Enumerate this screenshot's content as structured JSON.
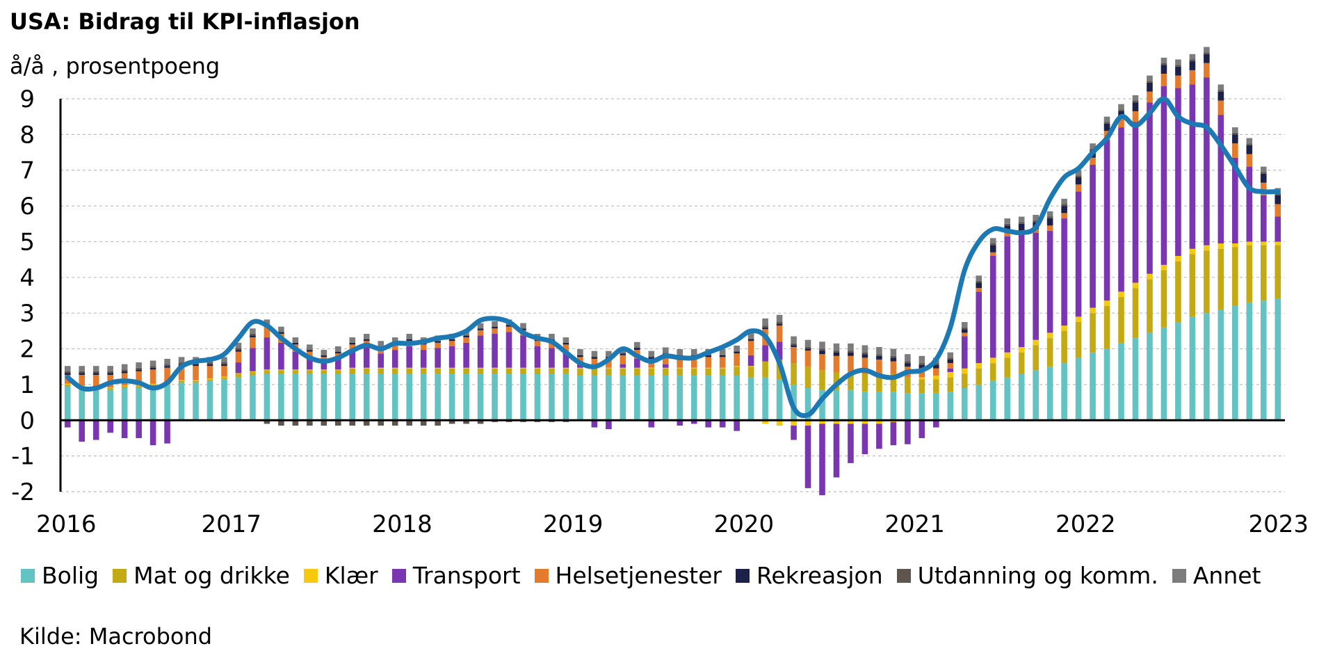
{
  "chart_data": {
    "type": "bar",
    "title": "USA: Bidrag til KPI-inflasjon",
    "ylabel": "å/å , prosentpoeng",
    "ylim": [
      -2,
      9
    ],
    "yticks": [
      "-2",
      "-1",
      "0",
      "1",
      "2",
      "3",
      "4",
      "5",
      "6",
      "7",
      "8",
      "9"
    ],
    "xticks": [
      "2016",
      "2017",
      "2018",
      "2019",
      "2020",
      "2021",
      "2022",
      "2023"
    ],
    "x_start": "2016-01",
    "x_end": "2023-01",
    "source": "Kilde: Macrobond",
    "grid": true,
    "legend_position": "bottom",
    "series": [
      {
        "name": "Bolig",
        "color": "#63C3C2",
        "values": [
          0.95,
          0.9,
          0.85,
          0.85,
          0.9,
          0.9,
          0.95,
          1.0,
          1.05,
          1.05,
          1.1,
          1.15,
          1.2,
          1.25,
          1.3,
          1.3,
          1.3,
          1.3,
          1.3,
          1.3,
          1.3,
          1.3,
          1.3,
          1.3,
          1.3,
          1.3,
          1.3,
          1.3,
          1.3,
          1.3,
          1.3,
          1.3,
          1.3,
          1.3,
          1.3,
          1.3,
          1.25,
          1.25,
          1.25,
          1.25,
          1.25,
          1.25,
          1.25,
          1.25,
          1.25,
          1.25,
          1.25,
          1.25,
          1.2,
          1.2,
          1.15,
          1.0,
          0.9,
          0.85,
          0.85,
          0.85,
          0.8,
          0.8,
          0.8,
          0.75,
          0.75,
          0.75,
          0.8,
          0.9,
          1.0,
          1.1,
          1.2,
          1.3,
          1.4,
          1.5,
          1.6,
          1.75,
          1.9,
          2.0,
          2.15,
          2.3,
          2.45,
          2.6,
          2.75,
          2.9,
          3.0,
          3.1,
          3.2,
          3.3,
          3.35,
          3.4
        ]
      },
      {
        "name": "Mat og drikke",
        "color": "#C3A914",
        "values": [
          0.05,
          0.05,
          0.05,
          0.05,
          0.05,
          0.05,
          0.05,
          0.05,
          0.05,
          0.05,
          0.05,
          0.05,
          0.1,
          0.1,
          0.1,
          0.1,
          0.1,
          0.1,
          0.1,
          0.1,
          0.15,
          0.15,
          0.15,
          0.15,
          0.15,
          0.15,
          0.15,
          0.15,
          0.15,
          0.15,
          0.15,
          0.15,
          0.15,
          0.15,
          0.15,
          0.15,
          0.2,
          0.2,
          0.2,
          0.2,
          0.2,
          0.2,
          0.2,
          0.2,
          0.2,
          0.2,
          0.2,
          0.25,
          0.3,
          0.45,
          0.55,
          0.6,
          0.6,
          0.55,
          0.5,
          0.5,
          0.5,
          0.5,
          0.5,
          0.45,
          0.4,
          0.4,
          0.4,
          0.4,
          0.45,
          0.5,
          0.55,
          0.6,
          0.7,
          0.8,
          0.9,
          1.0,
          1.1,
          1.2,
          1.3,
          1.4,
          1.5,
          1.6,
          1.7,
          1.75,
          1.75,
          1.7,
          1.65,
          1.6,
          1.55,
          1.5
        ]
      },
      {
        "name": "Klær",
        "color": "#F6C90E",
        "values": [
          0.02,
          0.02,
          0.02,
          0.02,
          0.02,
          0.02,
          0.02,
          0.02,
          0.02,
          0.02,
          0.02,
          0.02,
          0.02,
          0.02,
          0.02,
          0.02,
          0.02,
          0.02,
          0.02,
          0.02,
          0.02,
          0.02,
          0.02,
          0.02,
          0.02,
          0.02,
          0.02,
          0.02,
          0.02,
          0.02,
          0.02,
          0.02,
          0.02,
          0.02,
          0.02,
          0.02,
          0.02,
          0.02,
          0.02,
          0.02,
          0.02,
          0.02,
          0.02,
          0.02,
          0.02,
          0.02,
          0.02,
          0.02,
          0.02,
          -0.1,
          -0.15,
          -0.15,
          -0.15,
          -0.1,
          -0.1,
          -0.1,
          -0.1,
          -0.1,
          -0.05,
          -0.02,
          0.05,
          0.1,
          0.15,
          0.15,
          0.15,
          0.15,
          0.15,
          0.15,
          0.15,
          0.15,
          0.15,
          0.15,
          0.15,
          0.15,
          0.15,
          0.15,
          0.15,
          0.15,
          0.15,
          0.15,
          0.15,
          0.15,
          0.1,
          0.1,
          0.1,
          0.1
        ]
      },
      {
        "name": "Transport",
        "color": "#7A35B0",
        "values": [
          -0.2,
          -0.6,
          -0.55,
          -0.35,
          -0.5,
          -0.5,
          -0.7,
          -0.65,
          0.0,
          0.0,
          0.0,
          0.0,
          0.3,
          0.65,
          0.9,
          0.75,
          0.5,
          0.3,
          0.2,
          0.3,
          0.5,
          0.6,
          0.4,
          0.5,
          0.6,
          0.5,
          0.55,
          0.6,
          0.7,
          0.9,
          0.95,
          1.0,
          0.9,
          0.6,
          0.55,
          0.45,
          0.1,
          -0.2,
          -0.25,
          0.1,
          0.25,
          -0.2,
          0.1,
          -0.15,
          -0.1,
          -0.2,
          -0.2,
          -0.3,
          0.3,
          0.45,
          0.5,
          -0.4,
          -1.75,
          -2.0,
          -1.5,
          -1.1,
          -0.85,
          -0.7,
          -0.65,
          -0.65,
          -0.5,
          -0.2,
          0.1,
          0.9,
          2.0,
          2.85,
          3.25,
          3.15,
          3.0,
          2.85,
          3.0,
          3.5,
          4.0,
          4.5,
          4.6,
          4.5,
          4.8,
          5.0,
          4.7,
          4.6,
          4.7,
          3.6,
          2.4,
          2.1,
          1.3,
          0.7
        ]
      },
      {
        "name": "Helsetjenester",
        "color": "#E47B2C",
        "values": [
          0.25,
          0.3,
          0.35,
          0.35,
          0.35,
          0.4,
          0.4,
          0.4,
          0.4,
          0.4,
          0.35,
          0.3,
          0.3,
          0.3,
          0.3,
          0.25,
          0.2,
          0.2,
          0.15,
          0.15,
          0.15,
          0.15,
          0.15,
          0.15,
          0.15,
          0.15,
          0.15,
          0.15,
          0.15,
          0.15,
          0.15,
          0.15,
          0.15,
          0.15,
          0.2,
          0.2,
          0.2,
          0.25,
          0.25,
          0.25,
          0.25,
          0.25,
          0.25,
          0.3,
          0.3,
          0.3,
          0.3,
          0.35,
          0.4,
          0.45,
          0.45,
          0.45,
          0.45,
          0.45,
          0.45,
          0.45,
          0.45,
          0.4,
          0.35,
          0.3,
          0.25,
          0.2,
          0.15,
          0.1,
          0.1,
          0.1,
          0.1,
          0.1,
          0.1,
          0.15,
          0.15,
          0.2,
          0.2,
          0.25,
          0.25,
          0.3,
          0.3,
          0.35,
          0.35,
          0.4,
          0.4,
          0.4,
          0.4,
          0.35,
          0.35,
          0.35
        ]
      },
      {
        "name": "Rekreasjon",
        "color": "#1B2148",
        "values": [
          0.05,
          0.05,
          0.05,
          0.05,
          0.05,
          0.05,
          0.05,
          0.05,
          0.05,
          0.05,
          0.05,
          0.05,
          0.05,
          0.05,
          0.05,
          0.05,
          0.05,
          0.05,
          0.05,
          0.05,
          0.05,
          0.05,
          0.05,
          0.05,
          0.05,
          0.05,
          0.05,
          0.05,
          0.05,
          0.05,
          0.05,
          0.05,
          0.05,
          0.05,
          0.05,
          0.05,
          0.05,
          0.05,
          0.05,
          0.05,
          0.05,
          0.05,
          0.05,
          0.05,
          0.05,
          0.05,
          0.05,
          0.05,
          0.05,
          0.05,
          0.05,
          0.05,
          0.05,
          0.1,
          0.1,
          0.1,
          0.1,
          0.1,
          0.1,
          0.1,
          0.1,
          0.1,
          0.1,
          0.1,
          0.15,
          0.2,
          0.2,
          0.2,
          0.2,
          0.2,
          0.2,
          0.2,
          0.2,
          0.2,
          0.2,
          0.25,
          0.25,
          0.25,
          0.25,
          0.25,
          0.25,
          0.25,
          0.25,
          0.25,
          0.25,
          0.25
        ]
      },
      {
        "name": "Utdanning og komm.",
        "color": "#5E554F",
        "values": [
          0.05,
          0.05,
          0.05,
          0.05,
          0.05,
          0.05,
          0.05,
          0.05,
          0.05,
          0.05,
          0.05,
          0.05,
          0.05,
          0.05,
          -0.1,
          -0.15,
          -0.15,
          -0.15,
          -0.15,
          -0.15,
          -0.15,
          -0.15,
          -0.15,
          -0.15,
          -0.15,
          -0.15,
          -0.15,
          -0.1,
          -0.1,
          -0.1,
          -0.05,
          -0.05,
          -0.05,
          -0.05,
          -0.05,
          -0.05,
          0.02,
          0.02,
          0.02,
          0.02,
          0.02,
          0.02,
          0.02,
          0.02,
          0.02,
          0.02,
          0.02,
          0.02,
          0.02,
          0.05,
          0.05,
          0.05,
          0.05,
          0.05,
          0.05,
          0.05,
          0.05,
          0.05,
          0.05,
          0.05,
          0.05,
          0.05,
          0.05,
          0.05,
          0.05,
          0.05,
          0.05,
          0.05,
          0.05,
          0.05,
          0.05,
          0.05,
          0.05,
          0.05,
          0.05,
          0.05,
          0.05,
          0.05,
          0.05,
          0.05,
          0.05,
          0.05,
          0.05,
          0.05,
          0.05,
          0.05
        ]
      },
      {
        "name": "Annet",
        "color": "#7C7C7C",
        "values": [
          0.15,
          0.15,
          0.15,
          0.15,
          0.15,
          0.15,
          0.15,
          0.15,
          0.15,
          0.15,
          0.15,
          0.15,
          0.15,
          0.15,
          0.15,
          0.15,
          0.15,
          0.15,
          0.15,
          0.15,
          0.15,
          0.15,
          0.15,
          0.15,
          0.15,
          0.15,
          0.15,
          0.15,
          0.15,
          0.15,
          0.15,
          0.15,
          0.15,
          0.15,
          0.15,
          0.15,
          0.15,
          0.15,
          0.15,
          0.15,
          0.15,
          0.15,
          0.15,
          0.15,
          0.15,
          0.15,
          0.15,
          0.15,
          0.15,
          0.2,
          0.2,
          0.2,
          0.2,
          0.2,
          0.2,
          0.2,
          0.2,
          0.2,
          0.2,
          0.2,
          0.2,
          0.15,
          0.15,
          0.15,
          0.15,
          0.15,
          0.15,
          0.15,
          0.15,
          0.15,
          0.15,
          0.15,
          0.15,
          0.15,
          0.15,
          0.15,
          0.15,
          0.15,
          0.15,
          0.15,
          0.15,
          0.15,
          0.15,
          0.15,
          0.15,
          0.15
        ]
      }
    ],
    "total": {
      "name": "KPI",
      "color": "#1C79B3",
      "values": [
        1.2,
        0.9,
        0.9,
        1.05,
        1.1,
        1.05,
        0.9,
        1.05,
        1.5,
        1.65,
        1.7,
        1.85,
        2.3,
        2.75,
        2.65,
        2.3,
        2.0,
        1.75,
        1.65,
        1.75,
        1.95,
        2.1,
        2.0,
        2.15,
        2.15,
        2.2,
        2.3,
        2.35,
        2.5,
        2.8,
        2.85,
        2.75,
        2.45,
        2.3,
        2.2,
        1.9,
        1.6,
        1.5,
        1.7,
        2.0,
        1.8,
        1.65,
        1.8,
        1.75,
        1.75,
        1.9,
        2.05,
        2.25,
        2.5,
        2.35,
        1.6,
        0.35,
        0.15,
        0.6,
        1.0,
        1.3,
        1.4,
        1.25,
        1.2,
        1.35,
        1.4,
        1.7,
        2.6,
        4.2,
        5.0,
        5.35,
        5.3,
        5.25,
        5.4,
        6.2,
        6.8,
        7.05,
        7.5,
        7.9,
        8.5,
        8.25,
        8.6,
        9.0,
        8.5,
        8.3,
        8.2,
        7.7,
        7.1,
        6.5,
        6.4,
        6.4
      ]
    }
  },
  "legend": [
    {
      "label": "Bolig",
      "color": "#63C3C2"
    },
    {
      "label": "Mat og drikke",
      "color": "#C3A914"
    },
    {
      "label": "Klær",
      "color": "#F6C90E"
    },
    {
      "label": "Transport",
      "color": "#7A35B0"
    },
    {
      "label": "Helsetjenester",
      "color": "#E47B2C"
    },
    {
      "label": "Rekreasjon",
      "color": "#1B2148"
    },
    {
      "label": "Utdanning og komm.",
      "color": "#5E554F"
    },
    {
      "label": "Annet",
      "color": "#7C7C7C"
    }
  ]
}
